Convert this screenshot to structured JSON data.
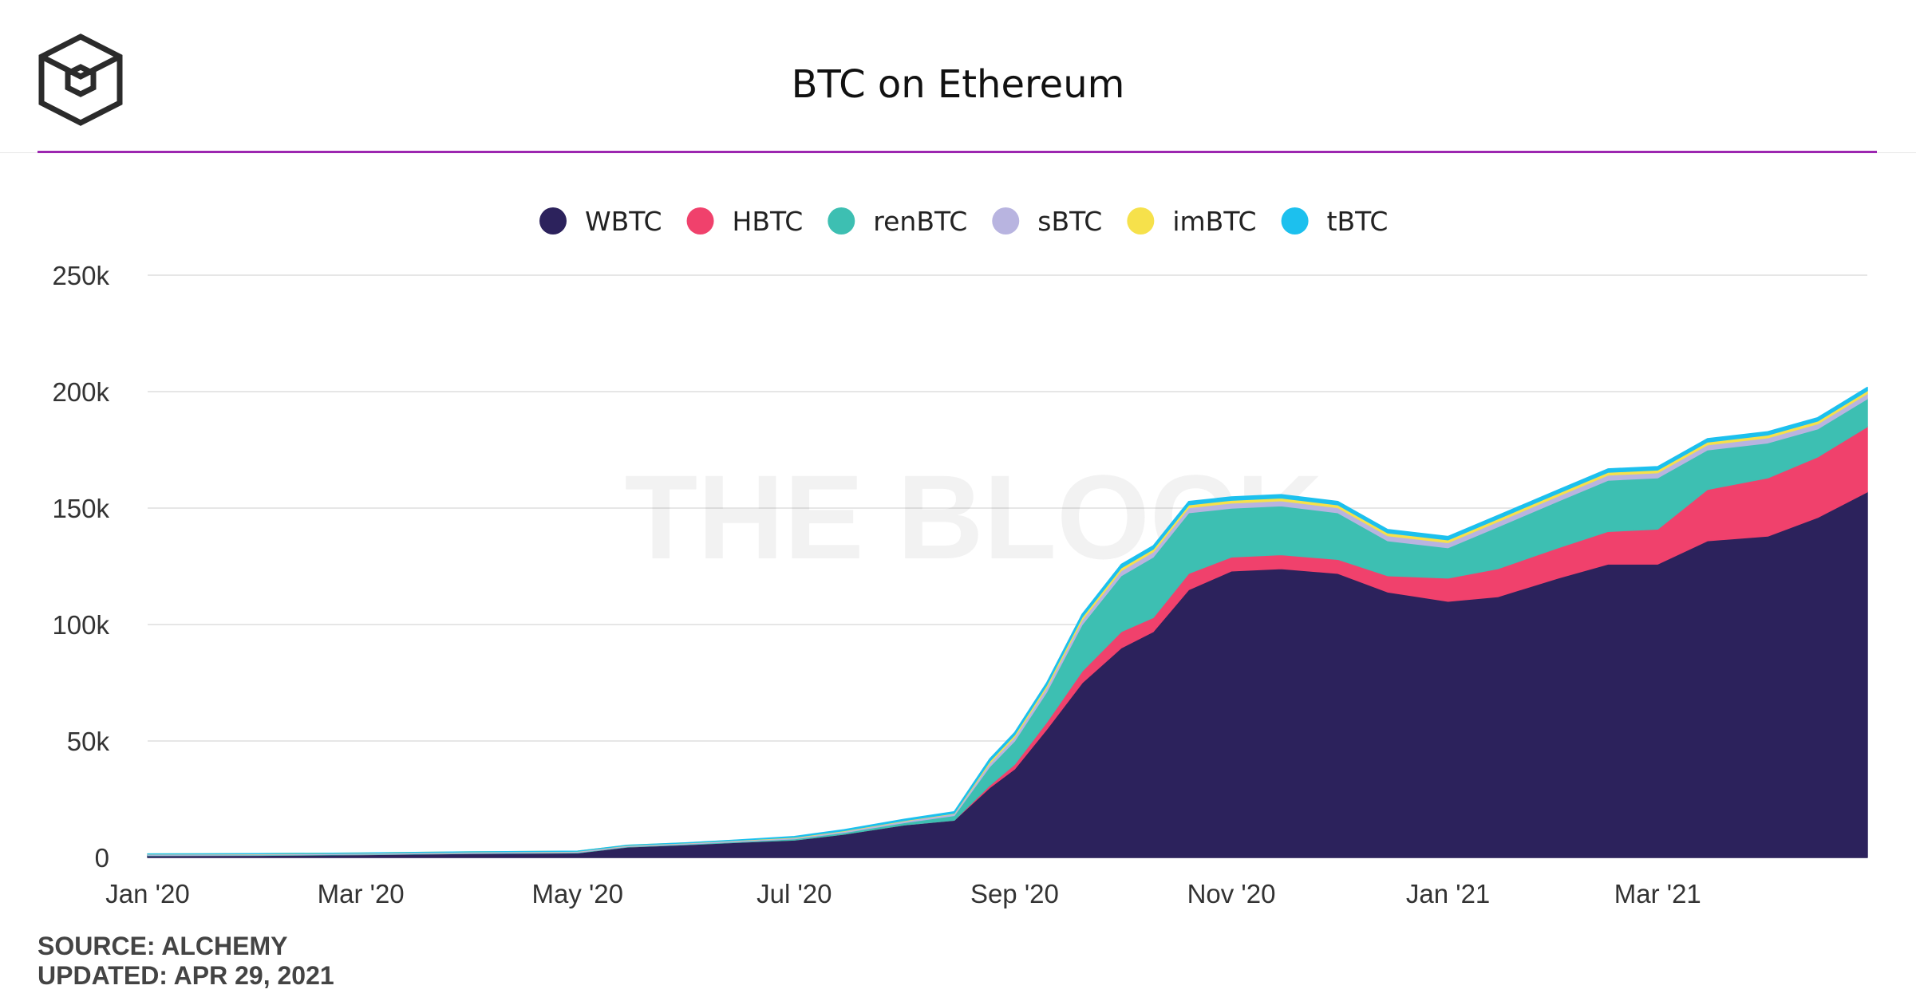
{
  "header": {
    "title": "BTC on Ethereum",
    "logo_icon": "the-block-cube-logo"
  },
  "watermark": "THE BLOCK",
  "footer": {
    "source": "SOURCE: ALCHEMY",
    "updated": "UPDATED: APR 29, 2021"
  },
  "chart_data": {
    "type": "area",
    "stacked": true,
    "title": "BTC on Ethereum",
    "xlabel": "",
    "ylabel": "",
    "ylim": [
      0,
      250000
    ],
    "y_ticks": [
      0,
      50000,
      100000,
      150000,
      200000,
      250000
    ],
    "y_tick_labels": [
      "0",
      "50k",
      "100k",
      "150k",
      "200k",
      "250k"
    ],
    "x_ticks": [
      "2020-01-01",
      "2020-03-01",
      "2020-05-01",
      "2020-07-01",
      "2020-09-01",
      "2020-11-01",
      "2021-01-01",
      "2021-03-01"
    ],
    "x_tick_labels": [
      "Jan '20",
      "Mar '20",
      "May '20",
      "Jul '20",
      "Sep '20",
      "Nov '20",
      "Jan '21",
      "Mar '21"
    ],
    "legend_position": "top-center",
    "grid": true,
    "x": [
      "2020-01-01",
      "2020-02-01",
      "2020-03-01",
      "2020-04-01",
      "2020-05-01",
      "2020-05-15",
      "2020-06-01",
      "2020-06-15",
      "2020-07-01",
      "2020-07-15",
      "2020-08-01",
      "2020-08-15",
      "2020-08-25",
      "2020-09-01",
      "2020-09-10",
      "2020-09-20",
      "2020-10-01",
      "2020-10-10",
      "2020-10-20",
      "2020-11-01",
      "2020-11-15",
      "2020-12-01",
      "2020-12-15",
      "2021-01-01",
      "2021-01-15",
      "2021-02-01",
      "2021-02-15",
      "2021-03-01",
      "2021-03-15",
      "2021-04-01",
      "2021-04-15",
      "2021-04-29"
    ],
    "series": [
      {
        "name": "WBTC",
        "color": "#2c225c",
        "values": [
          800,
          900,
          1200,
          1700,
          2000,
          4500,
          5500,
          6500,
          7500,
          10000,
          14000,
          16000,
          30000,
          38000,
          55000,
          75000,
          90000,
          97000,
          115000,
          123000,
          124000,
          122000,
          114000,
          110000,
          112000,
          120000,
          126000,
          126000,
          136000,
          138000,
          146000,
          157000
        ]
      },
      {
        "name": "HBTC",
        "color": "#f0416c",
        "values": [
          0,
          0,
          0,
          0,
          0,
          0,
          0,
          0,
          0,
          0,
          0,
          0,
          1000,
          2000,
          3000,
          5000,
          7000,
          6000,
          7000,
          6000,
          6000,
          6000,
          7000,
          10000,
          12000,
          13000,
          14000,
          15000,
          22000,
          25000,
          26000,
          28000
        ]
      },
      {
        "name": "renBTC",
        "color": "#3dbfb2",
        "values": [
          200,
          200,
          200,
          200,
          200,
          200,
          300,
          300,
          500,
          700,
          1000,
          2000,
          8000,
          10000,
          13000,
          20000,
          24000,
          26000,
          26000,
          21000,
          21000,
          20000,
          15000,
          13000,
          18000,
          20000,
          22000,
          22000,
          17000,
          15000,
          12000,
          12000
        ]
      },
      {
        "name": "sBTC",
        "color": "#b8b4e0",
        "values": [
          400,
          400,
          400,
          400,
          400,
          400,
          400,
          500,
          500,
          600,
          700,
          800,
          1500,
          1700,
          1900,
          2000,
          2200,
          2200,
          2200,
          2200,
          2200,
          2200,
          2200,
          2200,
          2200,
          2200,
          2200,
          2200,
          2200,
          2200,
          2200,
          2200
        ]
      },
      {
        "name": "imBTC",
        "color": "#f6e14b",
        "values": [
          100,
          100,
          100,
          100,
          100,
          100,
          100,
          100,
          200,
          200,
          200,
          200,
          800,
          900,
          1000,
          1200,
          1200,
          1200,
          1200,
          1200,
          1200,
          1200,
          1200,
          1200,
          1200,
          1200,
          1200,
          1200,
          1200,
          1200,
          1200,
          1200
        ]
      },
      {
        "name": "tBTC",
        "color": "#1cc0ee",
        "values": [
          0,
          0,
          0,
          0,
          0,
          0,
          0,
          100,
          300,
          400,
          500,
          600,
          1000,
          1000,
          1000,
          1200,
          1400,
          1400,
          1400,
          1400,
          1400,
          1400,
          1400,
          1400,
          1400,
          1400,
          1400,
          1400,
          1400,
          1400,
          1400,
          1400
        ]
      }
    ]
  }
}
